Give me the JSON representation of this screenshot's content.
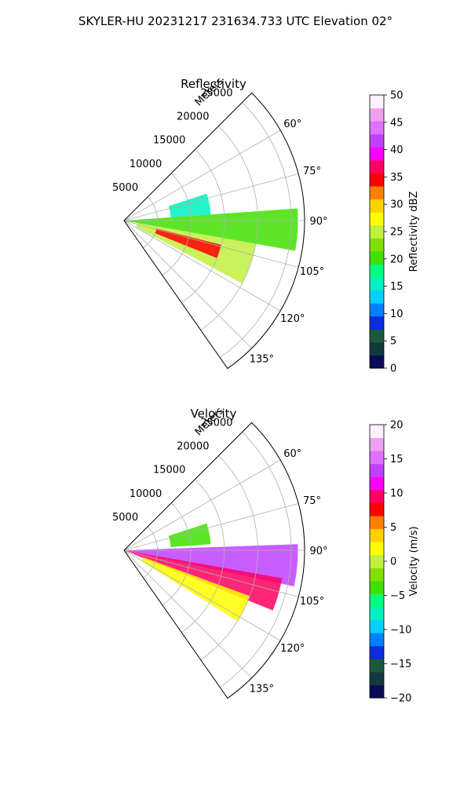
{
  "figure_title": "SKYLER-HU  20231217  231634.733 UTC Elevation 02°",
  "chart_data": [
    {
      "type": "heatmap",
      "title": "Reflectivity",
      "range_axis_label": "Meters",
      "range_ticks": [
        5000,
        10000,
        15000,
        20000,
        25000
      ],
      "range_max": 27000,
      "azimuth_ticks": [
        "60°",
        "75°",
        "90°",
        "105°",
        "120°",
        "135°"
      ],
      "azimuth_tick_values": [
        60,
        75,
        90,
        105,
        120,
        135
      ],
      "azimuth_range": [
        45,
        145
      ],
      "grid": true,
      "colorbar": {
        "label": "Reflectivity dBZ",
        "vmin": 0,
        "vmax": 50,
        "ticks": [
          "0",
          "5",
          "10",
          "15",
          "20",
          "25",
          "30",
          "35",
          "40",
          "45",
          "50"
        ],
        "tick_values": [
          0,
          5,
          10,
          15,
          20,
          25,
          30,
          35,
          40,
          45,
          50
        ],
        "colors": [
          "#0b0b58",
          "#123a3a",
          "#1a5a3a",
          "#0a2be0",
          "#0080ff",
          "#00d0ff",
          "#00f0c0",
          "#00ff80",
          "#40e000",
          "#80e000",
          "#c0f040",
          "#ffff00",
          "#ffd000",
          "#ff8000",
          "#ff0000",
          "#ff0060",
          "#ff00ff",
          "#c040ff",
          "#e070ff",
          "#f0a0f0",
          "#fff0ff"
        ]
      },
      "echo_regions": [
        {
          "az": [
            72,
            86
          ],
          "r": [
            7000,
            13000
          ],
          "value": 16
        },
        {
          "az": [
            86,
            100
          ],
          "r": [
            0,
            26000
          ],
          "value": 20
        },
        {
          "az": [
            100,
            118
          ],
          "r": [
            2000,
            20000
          ],
          "value": 24
        },
        {
          "az": [
            104,
            112
          ],
          "r": [
            5000,
            15000
          ],
          "value": 34
        }
      ]
    },
    {
      "type": "heatmap",
      "title": "Velocity",
      "range_axis_label": "Meters",
      "range_ticks": [
        5000,
        10000,
        15000,
        20000,
        25000
      ],
      "range_max": 27000,
      "azimuth_ticks": [
        "60°",
        "75°",
        "90°",
        "105°",
        "120°",
        "135°"
      ],
      "azimuth_tick_values": [
        60,
        75,
        90,
        105,
        120,
        135
      ],
      "azimuth_range": [
        45,
        145
      ],
      "grid": true,
      "colorbar": {
        "label": "Velocity (m/s)",
        "vmin": -20,
        "vmax": 20,
        "ticks": [
          "−20",
          "−15",
          "−10",
          "−5",
          "0",
          "5",
          "10",
          "15",
          "20"
        ],
        "tick_values": [
          -20,
          -15,
          -10,
          -5,
          0,
          5,
          10,
          15,
          20
        ],
        "colors": [
          "#0b0b58",
          "#123a3a",
          "#1a5a3a",
          "#0a2be0",
          "#0080ff",
          "#00d0ff",
          "#00f0c0",
          "#00ff80",
          "#40e000",
          "#80e000",
          "#c0f040",
          "#ffff00",
          "#ffd000",
          "#ff8000",
          "#ff0000",
          "#ff0060",
          "#ff00ff",
          "#c040ff",
          "#e070ff",
          "#f0a0f0",
          "#fff0ff"
        ]
      },
      "echo_regions": [
        {
          "az": [
            72,
            86
          ],
          "r": [
            7000,
            13000
          ],
          "value": -3
        },
        {
          "az": [
            88,
            102
          ],
          "r": [
            0,
            26000
          ],
          "value": 14
        },
        {
          "az": [
            100,
            112
          ],
          "r": [
            0,
            24000
          ],
          "value": 9
        },
        {
          "az": [
            110,
            122
          ],
          "r": [
            3000,
            20000
          ],
          "value": 2
        }
      ]
    }
  ]
}
